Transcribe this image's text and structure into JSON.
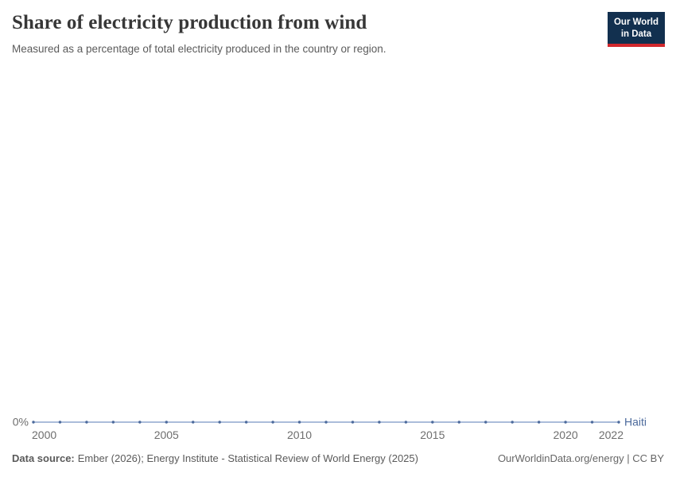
{
  "header": {
    "title": "Share of electricity production from wind",
    "subtitle": "Measured as a percentage of total electricity produced in the country or region.",
    "logo": {
      "line1": "Our World",
      "line2": "in Data"
    }
  },
  "chart_data": {
    "type": "line",
    "title": "Share of electricity production from wind",
    "xlabel": "",
    "ylabel": "",
    "unit": "%",
    "x": [
      2000,
      2001,
      2002,
      2003,
      2004,
      2005,
      2006,
      2007,
      2008,
      2009,
      2010,
      2011,
      2012,
      2013,
      2014,
      2015,
      2016,
      2017,
      2018,
      2019,
      2020,
      2021,
      2022
    ],
    "series": [
      {
        "name": "Haiti",
        "values": [
          0,
          0,
          0,
          0,
          0,
          0,
          0,
          0,
          0,
          0,
          0,
          0,
          0,
          0,
          0,
          0,
          0,
          0,
          0,
          0,
          0,
          0,
          0
        ]
      }
    ],
    "x_ticks": [
      2000,
      2005,
      2010,
      2015,
      2020,
      2022
    ],
    "y_ticks": [
      "0%"
    ],
    "legend_position": "entity label at right end of line",
    "grid": false,
    "colors": {
      "line": "#8fa6cd",
      "marker": "#4c6a9c",
      "entity_label": "#4c6a9c",
      "tick_label": "#6e6e6e"
    }
  },
  "footer": {
    "source_label": "Data source:",
    "source_text": "Ember (2026); Energy Institute - Statistical Review of World Energy (2025)",
    "rights": "OurWorldinData.org/energy | CC BY"
  },
  "colors": {
    "logo_background": "#12304f",
    "logo_accent": "#d2282d",
    "title_color": "#373737"
  }
}
